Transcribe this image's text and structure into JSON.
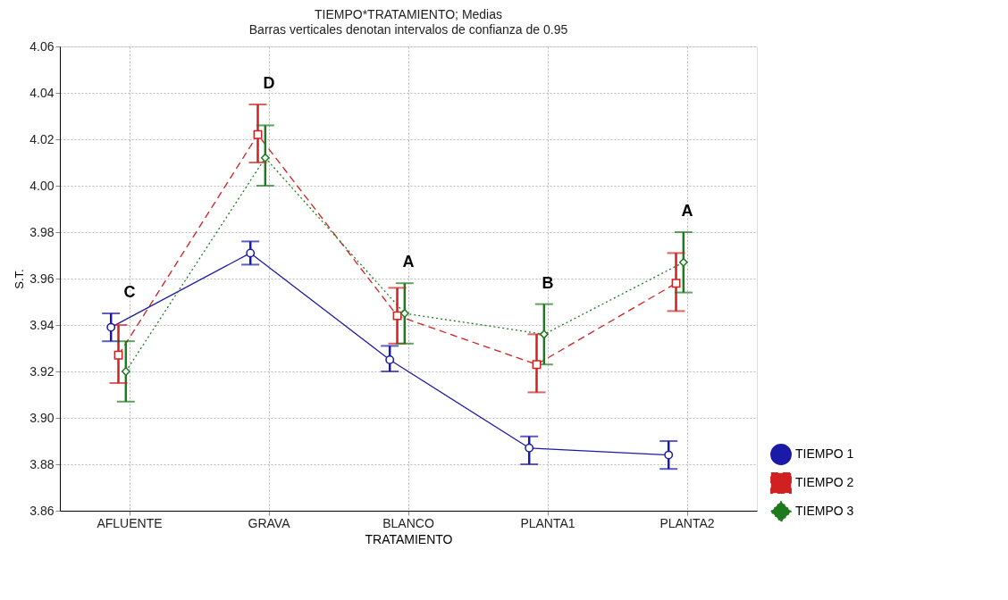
{
  "chart_data": {
    "type": "line",
    "title": "TIEMPO*TRATAMIENTO; Medias",
    "subtitle": "Barras verticales denotan intervalos de confianza de 0.95",
    "xlabel": "TRATAMIENTO",
    "ylabel": "S.T.",
    "categories": [
      "AFLUENTE",
      "GRAVA",
      "BLANCO",
      "PLANTA1",
      "PLANTA2"
    ],
    "series": [
      {
        "name": "TIEMPO 1",
        "color": "#1a1aa8",
        "marker": "circle",
        "line_style": "solid",
        "values": [
          3.939,
          3.971,
          3.925,
          3.887,
          3.884
        ],
        "errors": [
          [
            3.933,
            3.945
          ],
          [
            3.966,
            3.976
          ],
          [
            3.92,
            3.931
          ],
          [
            3.88,
            3.892
          ],
          [
            3.878,
            3.89
          ]
        ]
      },
      {
        "name": "TIEMPO 2",
        "color": "#d02020",
        "marker": "square",
        "line_style": "dashed",
        "values": [
          3.927,
          4.022,
          3.944,
          3.923,
          3.958
        ],
        "errors": [
          [
            3.915,
            3.94
          ],
          [
            4.01,
            4.035
          ],
          [
            3.932,
            3.956
          ],
          [
            3.911,
            3.936
          ],
          [
            3.946,
            3.971
          ]
        ]
      },
      {
        "name": "TIEMPO 3",
        "color": "#1e7a1e",
        "marker": "diamond",
        "line_style": "dotted",
        "values": [
          3.92,
          4.012,
          3.945,
          3.936,
          3.967
        ],
        "errors": [
          [
            3.907,
            3.933
          ],
          [
            4.0,
            4.026
          ],
          [
            3.932,
            3.958
          ],
          [
            3.923,
            3.949
          ],
          [
            3.954,
            3.98
          ]
        ]
      }
    ],
    "annotations": [
      "C",
      "D",
      "A",
      "B",
      "A"
    ],
    "ylim": [
      3.86,
      4.06
    ],
    "yticks": [
      3.86,
      3.88,
      {
        "value": 3.9,
        "label": "3.90"
      },
      3.92,
      3.94,
      3.96,
      3.98,
      {
        "value": 4,
        "label": "4.00"
      },
      4.02,
      4.04,
      4.06
    ],
    "grid": true,
    "legend": "bottom right"
  }
}
